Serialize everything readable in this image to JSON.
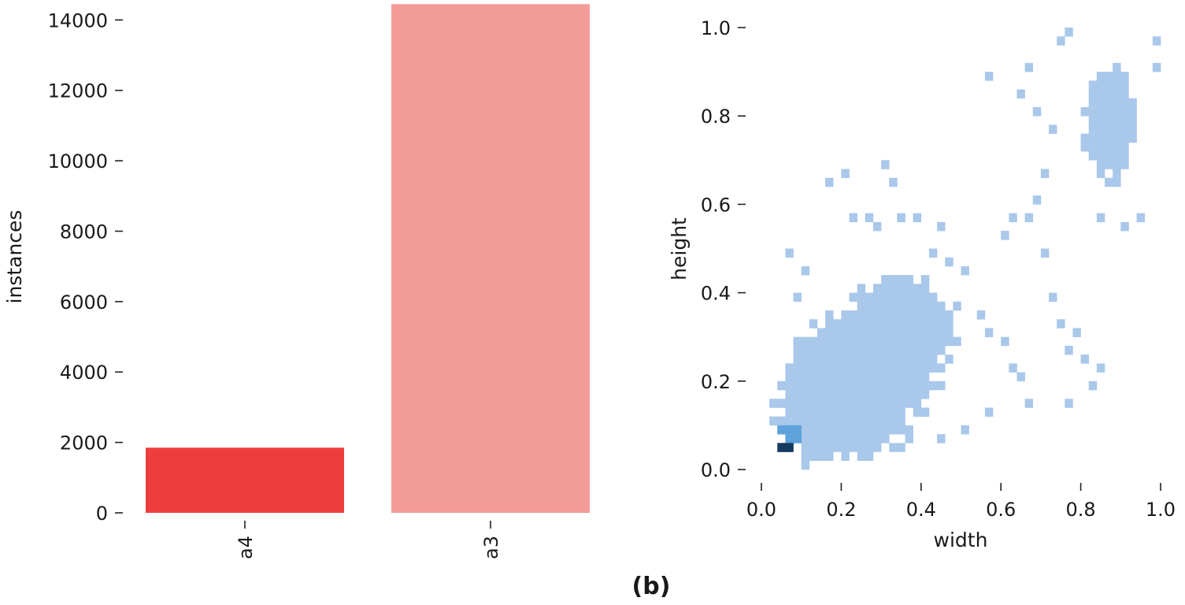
{
  "chart_data": [
    {
      "type": "bar",
      "categories": [
        "a4",
        "a3"
      ],
      "values": [
        1850,
        14450
      ],
      "colors": [
        "#ee3d3d",
        "#f39b98"
      ],
      "xlabel": "",
      "ylabel": "instances",
      "ylim": [
        0,
        14500
      ],
      "yticks": [
        0,
        2000,
        4000,
        6000,
        8000,
        10000,
        12000,
        14000
      ],
      "ytick_labels": [
        "0",
        "2000",
        "4000",
        "6000",
        "8000",
        "10000",
        "12000",
        "14000"
      ],
      "grid": false
    },
    {
      "type": "heatmap",
      "subtype": "2d-histogram",
      "xlabel": "width",
      "ylabel": "height",
      "xlim": [
        0.0,
        1.0
      ],
      "ylim": [
        0.0,
        1.0
      ],
      "xticks": [
        0.0,
        0.2,
        0.4,
        0.6,
        0.8,
        1.0
      ],
      "xtick_labels": [
        "0.0",
        "0.2",
        "0.4",
        "0.6",
        "0.8",
        "1.0"
      ],
      "yticks": [
        0.0,
        0.2,
        0.4,
        0.6,
        0.8,
        1.0
      ],
      "ytick_labels": [
        "0.0",
        "0.2",
        "0.4",
        "0.6",
        "0.8",
        "1.0"
      ],
      "bins": 50,
      "colors": {
        "low": "#a9c8ea",
        "mid": "#5ea2dc",
        "high": "#163a5f"
      },
      "blobs": [
        {
          "cx": 0.22,
          "cy": 0.17,
          "sx": 0.13,
          "sy": 0.12,
          "weight": 1.0
        },
        {
          "cx": 0.36,
          "cy": 0.31,
          "sx": 0.1,
          "sy": 0.09,
          "weight": 0.8
        },
        {
          "cx": 0.88,
          "cy": 0.78,
          "sx": 0.06,
          "sy": 0.11,
          "weight": 0.9
        }
      ],
      "dense_cells": [
        {
          "x": 0.06,
          "y": 0.06,
          "level": "mid"
        },
        {
          "x": 0.08,
          "y": 0.06,
          "level": "mid"
        },
        {
          "x": 0.06,
          "y": 0.08,
          "level": "mid"
        },
        {
          "x": 0.04,
          "y": 0.08,
          "level": "mid"
        },
        {
          "x": 0.08,
          "y": 0.08,
          "level": "mid"
        },
        {
          "x": 0.04,
          "y": 0.04,
          "level": "high"
        },
        {
          "x": 0.06,
          "y": 0.04,
          "level": "high"
        }
      ],
      "scattered_cells": [
        [
          0.16,
          0.64
        ],
        [
          0.2,
          0.66
        ],
        [
          0.3,
          0.68
        ],
        [
          0.32,
          0.64
        ],
        [
          0.22,
          0.58
        ],
        [
          0.26,
          0.58
        ],
        [
          0.28,
          0.54
        ],
        [
          0.34,
          0.56
        ],
        [
          0.38,
          0.56
        ],
        [
          0.44,
          0.54
        ],
        [
          0.06,
          0.48
        ],
        [
          0.1,
          0.44
        ],
        [
          0.08,
          0.38
        ],
        [
          0.42,
          0.48
        ],
        [
          0.46,
          0.46
        ],
        [
          0.5,
          0.44
        ],
        [
          0.48,
          0.36
        ],
        [
          0.54,
          0.34
        ],
        [
          0.56,
          0.3
        ],
        [
          0.6,
          0.28
        ],
        [
          0.62,
          0.22
        ],
        [
          0.64,
          0.2
        ],
        [
          0.66,
          0.14
        ],
        [
          0.7,
          0.48
        ],
        [
          0.72,
          0.38
        ],
        [
          0.74,
          0.32
        ],
        [
          0.76,
          0.26
        ],
        [
          0.78,
          0.3
        ],
        [
          0.8,
          0.24
        ],
        [
          0.82,
          0.18
        ],
        [
          0.76,
          0.14
        ],
        [
          0.84,
          0.22
        ],
        [
          0.56,
          0.12
        ],
        [
          0.5,
          0.08
        ],
        [
          0.44,
          0.06
        ],
        [
          0.62,
          0.58
        ],
        [
          0.6,
          0.52
        ],
        [
          0.66,
          0.56
        ],
        [
          0.68,
          0.6
        ],
        [
          0.7,
          0.66
        ],
        [
          0.64,
          0.84
        ],
        [
          0.68,
          0.8
        ],
        [
          0.72,
          0.76
        ],
        [
          0.66,
          0.9
        ],
        [
          0.58,
          0.88
        ],
        [
          0.74,
          0.96
        ],
        [
          0.76,
          0.98
        ],
        [
          0.84,
          0.56
        ],
        [
          0.9,
          0.54
        ],
        [
          0.94,
          0.56
        ],
        [
          0.98,
          0.9
        ],
        [
          0.98,
          0.96
        ]
      ]
    }
  ],
  "caption": "(b)"
}
